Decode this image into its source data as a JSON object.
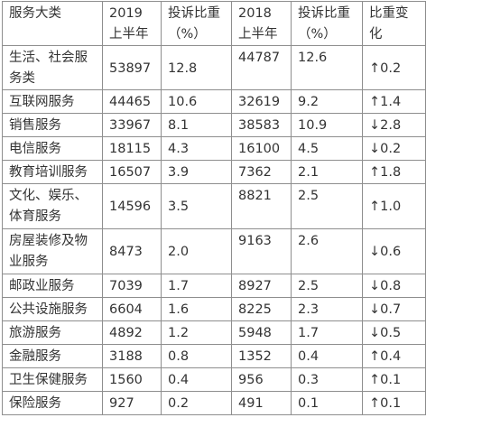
{
  "headers": [
    "服务大类",
    "2019\n上半年",
    "投诉比重\n（%）",
    "2018\n上半年",
    "投诉比重\n（%）",
    "比重变化"
  ],
  "rows": [
    [
      "生活、社会服务类",
      "53897",
      "12.8",
      "44787",
      "12.6",
      "↑0.2"
    ],
    [
      "互联网服务",
      "44465",
      "10.6",
      "32619",
      "9.2",
      "↑1.4"
    ],
    [
      "销售服务",
      "33967",
      "8.1",
      "38583",
      "10.9",
      "↓2.8"
    ],
    [
      "电信服务",
      "18115",
      "4.3",
      "16100",
      "4.5",
      "↓0.2"
    ],
    [
      "教育培训服务",
      "16507",
      "3.9",
      "7362",
      "2.1",
      "↑1.8"
    ],
    [
      "文化、娱乐、体育服务",
      "14596",
      "3.5",
      "8821",
      "2.5",
      "↑1.0"
    ],
    [
      "房屋装修及物业服务",
      "8473",
      "2.0",
      "9163",
      "2.6",
      "↓0.6"
    ],
    [
      "邮政业服务",
      "7039",
      "1.7",
      "8927",
      "2.5",
      "↓0.8"
    ],
    [
      "公共设施服务",
      "6604",
      "1.6",
      "8225",
      "2.3",
      "↓0.7"
    ],
    [
      "旅游服务",
      "4892",
      "1.2",
      "5948",
      "1.7",
      "↓0.5"
    ],
    [
      "金融服务",
      "3188",
      "0.8",
      "1352",
      "0.4",
      "↑0.4"
    ],
    [
      "卫生保健服务",
      "1560",
      "0.4",
      "956",
      "0.3",
      "↑0.1"
    ],
    [
      "保险服务",
      "927",
      "0.2",
      "491",
      "0.1",
      "↑0.1"
    ]
  ]
}
